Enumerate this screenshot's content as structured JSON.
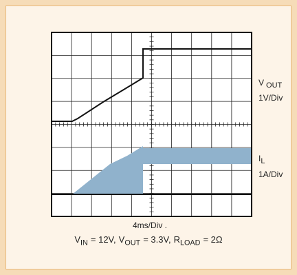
{
  "vout": {
    "symbol": "V",
    "subscript": "OUT",
    "scale": "1V/Div"
  },
  "il": {
    "symbol": "I",
    "subscript": "L",
    "scale": "1A/Div"
  },
  "time_scale": "4ms/Div .",
  "conditions": [
    {
      "symbol": "V",
      "subscript": "IN",
      "value": "= 12V,"
    },
    {
      "symbol": "V",
      "subscript": "OUT",
      "value": "= 3.3V,"
    },
    {
      "symbol": "R",
      "subscript": "LOAD",
      "value": "= 2Ω"
    }
  ]
}
